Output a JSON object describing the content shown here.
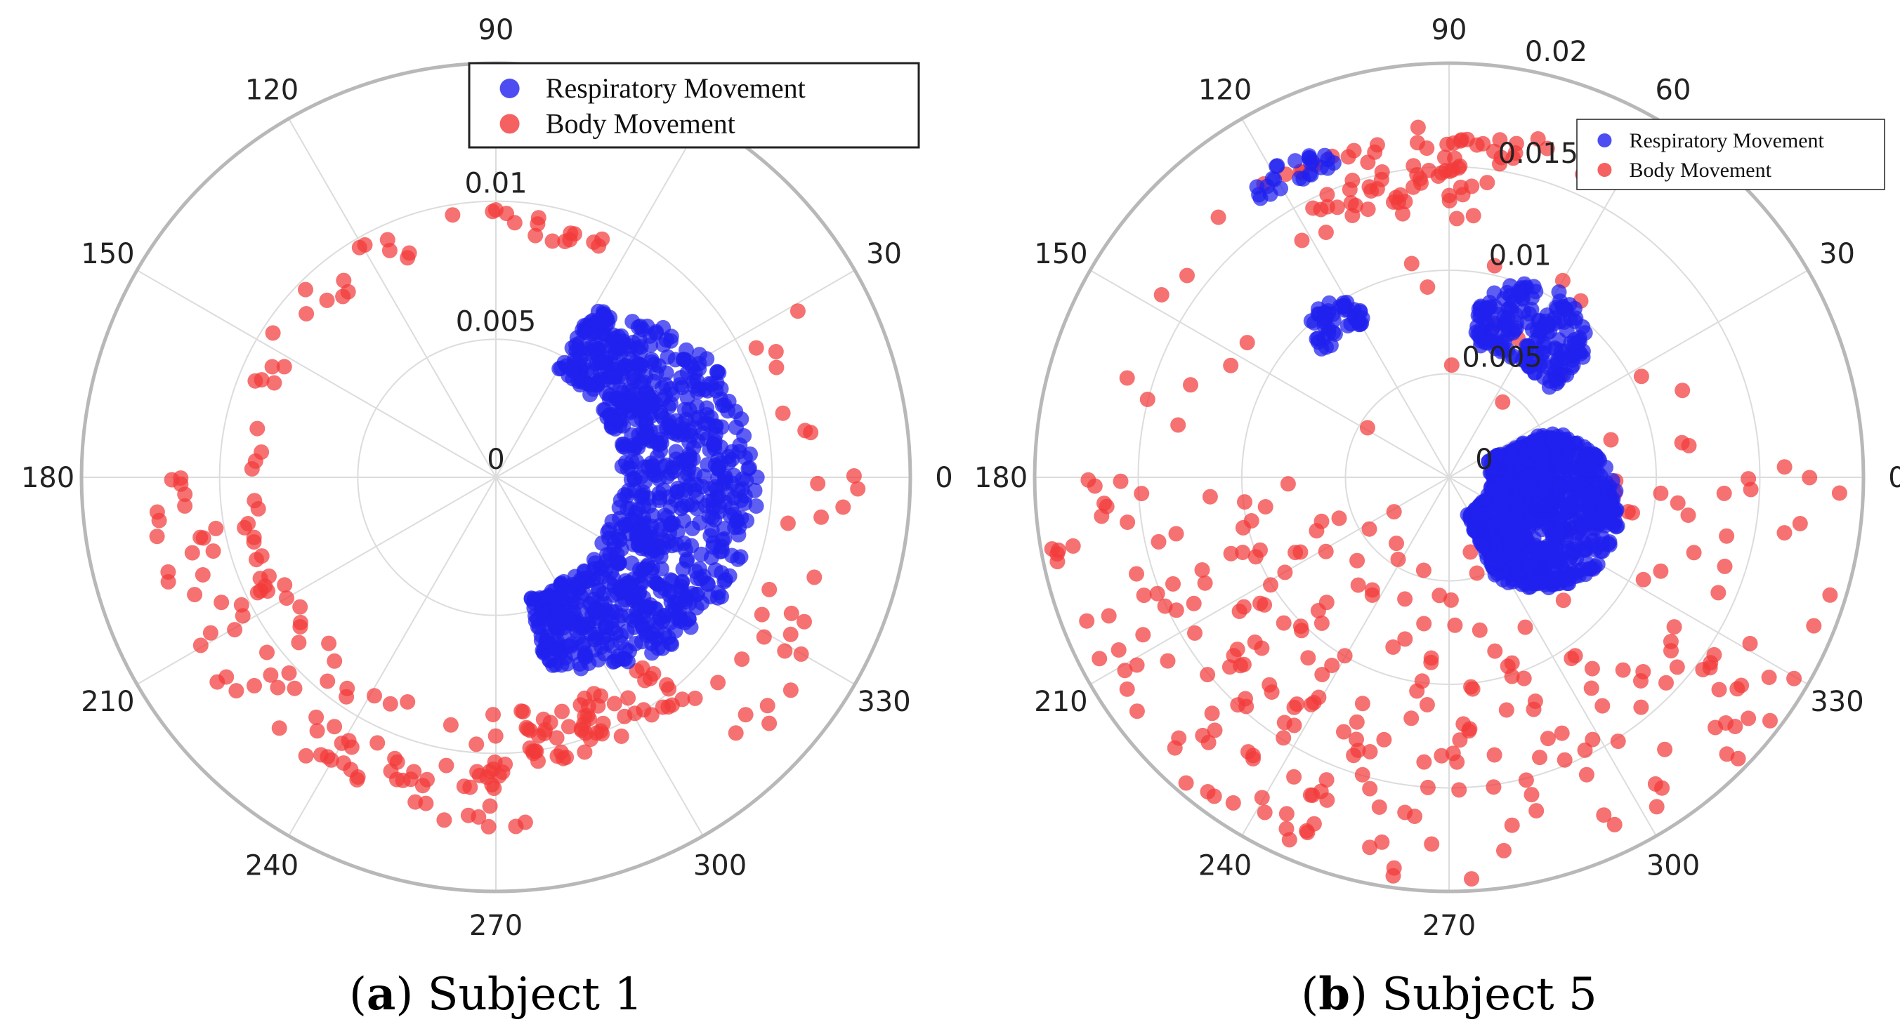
{
  "chart_data": [
    {
      "type": "scatter",
      "subtype": "polar",
      "panel_label": "a",
      "caption": "Subject 1",
      "angular_ticks": [
        "0",
        "30",
        "60",
        "90",
        "120",
        "150",
        "180",
        "210",
        "240",
        "270",
        "300",
        "330"
      ],
      "radial_ticks": [
        "0",
        "0.005",
        "0.01"
      ],
      "radial_tick_values": [
        0,
        0.005,
        0.01
      ],
      "radial_range": [
        0,
        0.015
      ],
      "radial_tick_angle_deg": 90,
      "legend_placement": "top-right",
      "series": [
        {
          "name": "Respiratory Movement",
          "color": "#2020ee",
          "description_ranges": "dense crescent, theta -75..60 deg, r 0.0045..0.0095",
          "cluster": {
            "theta_min": -75,
            "theta_max": 60,
            "r_min": 0.0045,
            "r_max": 0.0095,
            "count": 900
          }
        },
        {
          "name": "Body Movement",
          "color": "#f23a3a",
          "arcs": [
            {
              "theta_min": 60,
              "theta_max": 270,
              "r_center": 0.0091,
              "r_spread": 0.0006,
              "count": 70
            },
            {
              "theta_min": 180,
              "theta_max": 275,
              "r_center": 0.0115,
              "r_spread": 0.0012,
              "count": 80
            },
            {
              "theta_min": -85,
              "theta_max": -50,
              "r_center": 0.0095,
              "r_spread": 0.001,
              "count": 60
            },
            {
              "theta_min": -50,
              "theta_max": 40,
              "r_center": 0.0118,
              "r_spread": 0.0016,
              "count": 30
            }
          ]
        }
      ]
    },
    {
      "type": "scatter",
      "subtype": "polar",
      "panel_label": "b",
      "caption": "Subject 5",
      "angular_ticks": [
        "0",
        "30",
        "60",
        "90",
        "120",
        "150",
        "180",
        "210",
        "240",
        "270",
        "300",
        "330"
      ],
      "radial_ticks": [
        "0",
        "0.005",
        "0.01",
        "0.015",
        "0.02"
      ],
      "radial_tick_values": [
        0,
        0.005,
        0.01,
        0.015,
        0.02
      ],
      "radial_range": [
        0,
        0.02
      ],
      "radial_tick_angle_deg": 80,
      "legend_placement": "top-right",
      "series": [
        {
          "name": "Respiratory Movement",
          "color": "#2020ee",
          "clusters": [
            {
              "theta_min": -65,
              "theta_max": 25,
              "r_min": 0.002,
              "r_max": 0.0085,
              "count": 900
            },
            {
              "theta_min": 40,
              "theta_max": 80,
              "r_min": 0.0065,
              "r_max": 0.0105,
              "count": 180
            },
            {
              "theta_min": 118,
              "theta_max": 135,
              "r_min": 0.0085,
              "r_max": 0.0105,
              "count": 45
            },
            {
              "theta_min": 110,
              "theta_max": 125,
              "r_min": 0.016,
              "r_max": 0.0172,
              "count": 25
            }
          ]
        },
        {
          "name": "Body Movement",
          "color": "#f23a3a",
          "clusters": [
            {
              "theta_min": 78,
              "theta_max": 120,
              "r_min": 0.012,
              "r_max": 0.0165,
              "count": 70
            },
            {
              "theta_min": 180,
              "theta_max": 360,
              "r_min": 0.002,
              "r_max": 0.0195,
              "count": 260
            },
            {
              "theta_min": 0,
              "theta_max": 175,
              "r_min": 0.003,
              "r_max": 0.017,
              "count": 35
            }
          ]
        }
      ]
    }
  ]
}
